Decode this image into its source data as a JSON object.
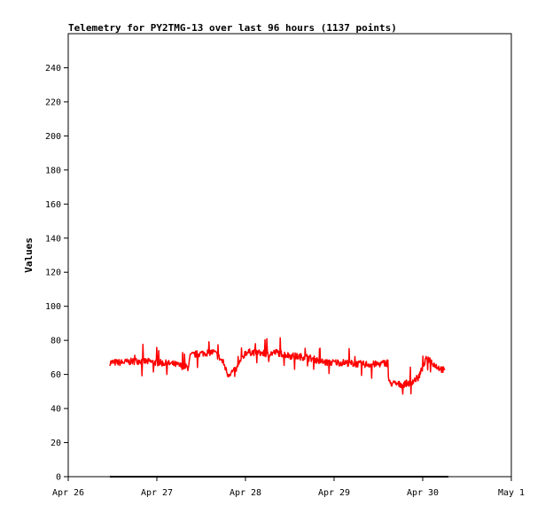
{
  "chart_data": {
    "type": "line",
    "title": "Telemetry for PY2TMG-13 over last 96 hours (1137 points)",
    "xlabel": "",
    "ylabel": "Values",
    "x_ticks": [
      "Apr 26",
      "Apr 27",
      "Apr 28",
      "Apr 29",
      "Apr 30",
      "May 1"
    ],
    "y_ticks": [
      0,
      20,
      40,
      60,
      80,
      100,
      120,
      140,
      160,
      180,
      200,
      220,
      240
    ],
    "xlim_days": [
      0,
      5
    ],
    "ylim": [
      0,
      260
    ],
    "grid": false,
    "colors": {
      "series_main": "#ff0000",
      "series_zero": "#000000",
      "frame": "#000000"
    },
    "series": [
      {
        "color": "#ff0000",
        "x_days": [
          0.47,
          0.6,
          0.8,
          1.0,
          1.2,
          1.35,
          1.38,
          1.45,
          1.6,
          1.65,
          1.75,
          1.8,
          1.9,
          2.0,
          2.1,
          2.25,
          2.35,
          2.5,
          2.7,
          2.9,
          3.1,
          3.3,
          3.5,
          3.6,
          3.62,
          3.75,
          3.85,
          3.95,
          4.05,
          4.15,
          4.25
        ],
        "y": [
          67,
          67,
          68,
          67,
          66,
          64,
          71,
          72,
          73,
          73,
          67,
          60,
          63,
          73,
          73,
          72,
          73,
          71,
          70,
          67,
          67,
          66,
          66,
          67,
          55,
          54,
          55,
          58,
          70,
          65,
          62
        ]
      },
      {
        "color": "#000000",
        "x_days": [
          0.47,
          4.29
        ],
        "y": [
          0,
          0
        ]
      }
    ]
  }
}
